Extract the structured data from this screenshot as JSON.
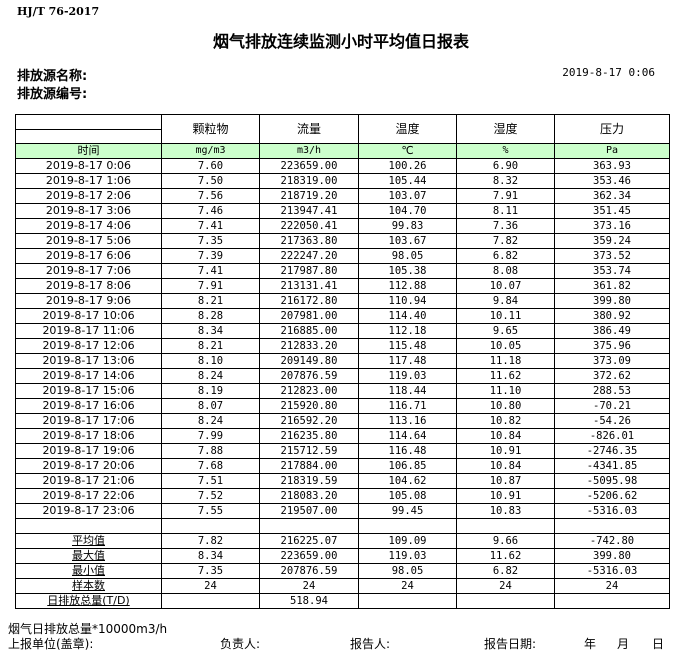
{
  "standard": "HJ/T 76-2017",
  "title": "烟气排放连续监测小时平均值日报表",
  "source_name_label": "排放源名称:",
  "source_id_label": "排放源编号:",
  "report_time": "2019-8-17 0:06",
  "columns": [
    "颗粒物",
    "流量",
    "温度",
    "湿度",
    "压力"
  ],
  "time_label": "时间",
  "units": [
    "mg/m3",
    "m3/h",
    "℃",
    "%",
    "Pa"
  ],
  "rows": [
    [
      "2019-8-17 0:06",
      "7.60",
      "223659.00",
      "100.26",
      "6.90",
      "363.93"
    ],
    [
      "2019-8-17 1:06",
      "7.50",
      "218319.00",
      "105.44",
      "8.32",
      "353.46"
    ],
    [
      "2019-8-17 2:06",
      "7.56",
      "218719.20",
      "103.07",
      "7.91",
      "362.34"
    ],
    [
      "2019-8-17 3:06",
      "7.46",
      "213947.41",
      "104.70",
      "8.11",
      "351.45"
    ],
    [
      "2019-8-17 4:06",
      "7.41",
      "222050.41",
      "99.83",
      "7.36",
      "373.16"
    ],
    [
      "2019-8-17 5:06",
      "7.35",
      "217363.80",
      "103.67",
      "7.82",
      "359.24"
    ],
    [
      "2019-8-17 6:06",
      "7.39",
      "222247.20",
      "98.05",
      "6.82",
      "373.52"
    ],
    [
      "2019-8-17 7:06",
      "7.41",
      "217987.80",
      "105.38",
      "8.08",
      "353.74"
    ],
    [
      "2019-8-17 8:06",
      "7.91",
      "213131.41",
      "112.88",
      "10.07",
      "361.82"
    ],
    [
      "2019-8-17 9:06",
      "8.21",
      "216172.80",
      "110.94",
      "9.84",
      "399.80"
    ],
    [
      "2019-8-17 10:06",
      "8.28",
      "207981.00",
      "114.40",
      "10.11",
      "380.92"
    ],
    [
      "2019-8-17 11:06",
      "8.34",
      "216885.00",
      "112.18",
      "9.65",
      "386.49"
    ],
    [
      "2019-8-17 12:06",
      "8.21",
      "212833.20",
      "115.48",
      "10.05",
      "375.96"
    ],
    [
      "2019-8-17 13:06",
      "8.10",
      "209149.80",
      "117.48",
      "11.18",
      "373.09"
    ],
    [
      "2019-8-17 14:06",
      "8.24",
      "207876.59",
      "119.03",
      "11.62",
      "372.62"
    ],
    [
      "2019-8-17 15:06",
      "8.19",
      "212823.00",
      "118.44",
      "11.10",
      "288.53"
    ],
    [
      "2019-8-17 16:06",
      "8.07",
      "215920.80",
      "116.71",
      "10.80",
      "-70.21"
    ],
    [
      "2019-8-17 17:06",
      "8.24",
      "216592.20",
      "113.16",
      "10.82",
      "-54.26"
    ],
    [
      "2019-8-17 18:06",
      "7.99",
      "216235.80",
      "114.64",
      "10.84",
      "-826.01"
    ],
    [
      "2019-8-17 19:06",
      "7.88",
      "215712.59",
      "116.48",
      "10.91",
      "-2746.35"
    ],
    [
      "2019-8-17 20:06",
      "7.68",
      "217884.00",
      "106.85",
      "10.84",
      "-4341.85"
    ],
    [
      "2019-8-17 21:06",
      "7.51",
      "218319.59",
      "104.62",
      "10.87",
      "-5095.98"
    ],
    [
      "2019-8-17 22:06",
      "7.52",
      "218083.20",
      "105.08",
      "10.91",
      "-5206.62"
    ],
    [
      "2019-8-17 23:06",
      "7.55",
      "219507.00",
      "99.45",
      "10.83",
      "-5316.03"
    ]
  ],
  "summary": [
    [
      "平均值",
      "7.82",
      "216225.07",
      "109.09",
      "9.66",
      "-742.80"
    ],
    [
      "最大值",
      "8.34",
      "223659.00",
      "119.03",
      "11.62",
      "399.80"
    ],
    [
      "最小值",
      "7.35",
      "207876.59",
      "98.05",
      "6.82",
      "-5316.03"
    ],
    [
      "样本数",
      "24",
      "24",
      "24",
      "24",
      "24"
    ],
    [
      "日排放总量(T/D)",
      "",
      "518.94",
      "",
      "",
      ""
    ]
  ],
  "footer": {
    "note": "烟气日排放总量*10000m3/h",
    "unit_label": "上报单位(盖章):",
    "responsible_label": "负责人:",
    "reporter_label": "报告人:",
    "date_label": "报告日期:",
    "year": "年",
    "month": "月",
    "day": "日"
  }
}
